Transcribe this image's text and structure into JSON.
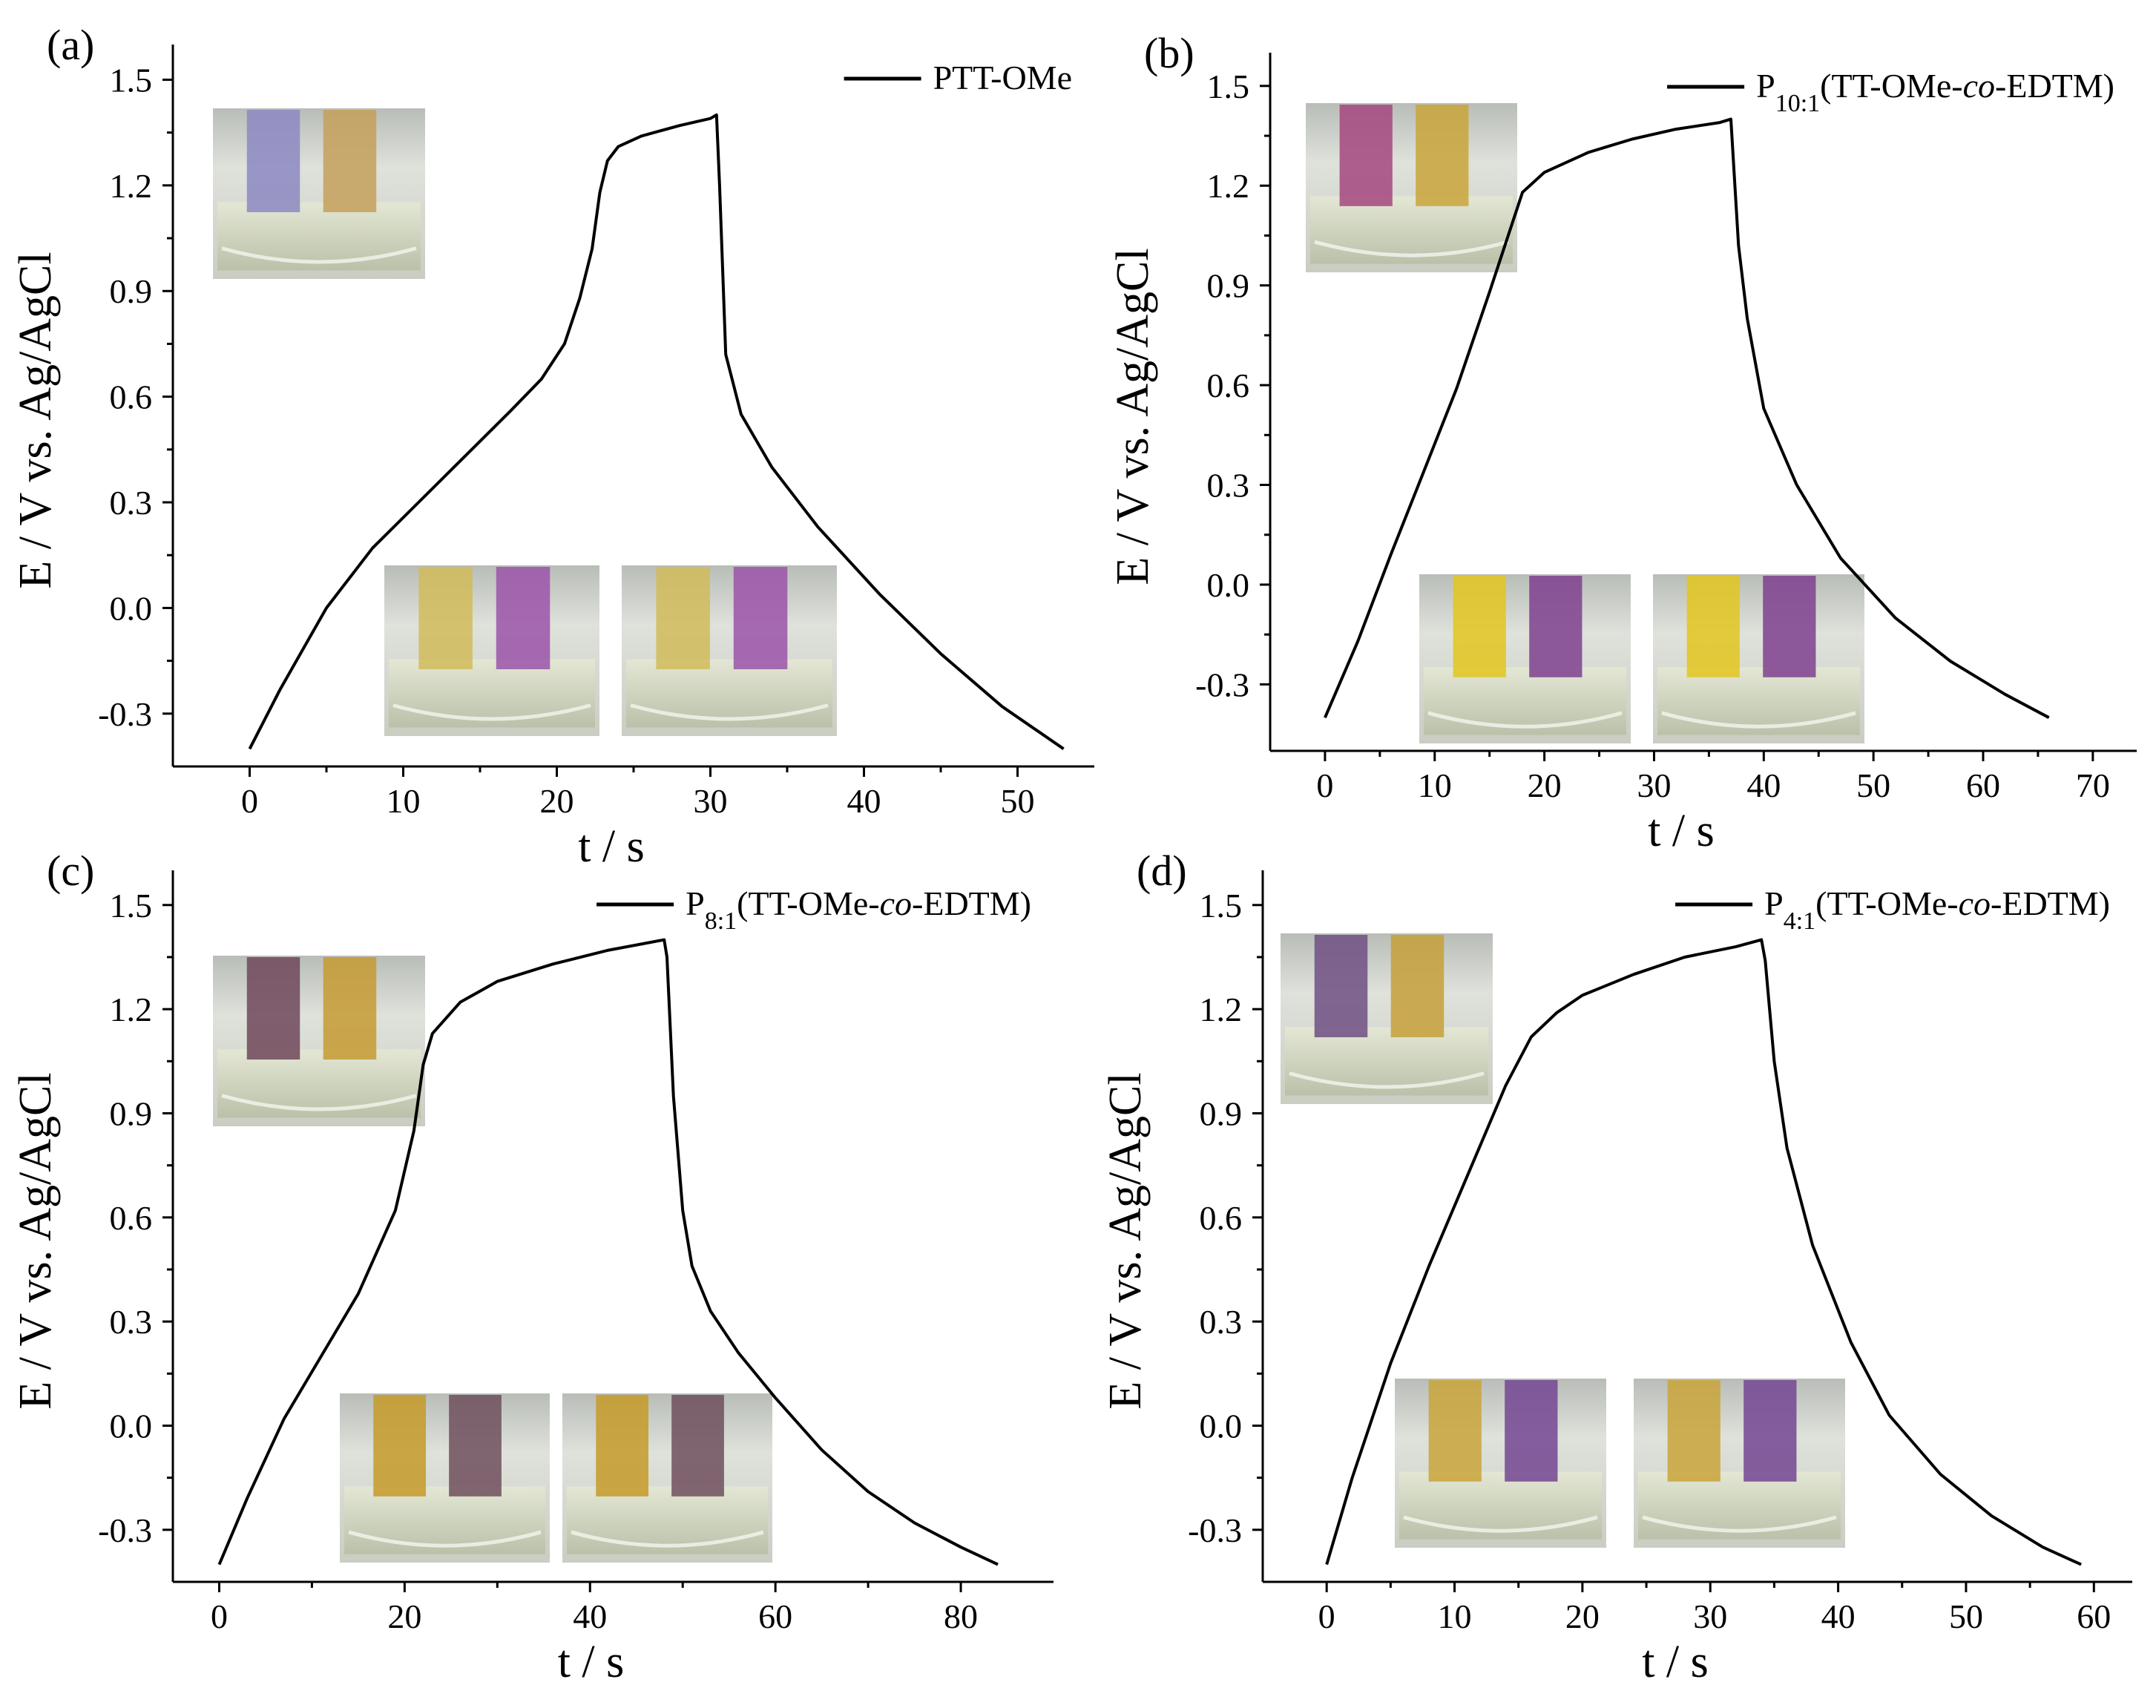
{
  "figure": {
    "xlabel": "t / s",
    "ylabel": "E / V vs. Ag/AgCl"
  },
  "chart_data": [
    {
      "panel": "(a)",
      "type": "line",
      "title": "",
      "xlabel": "t / s",
      "ylabel": "E / V vs. Ag/AgCl",
      "xlim": [
        -5,
        55
      ],
      "ylim": [
        -0.45,
        1.6
      ],
      "xticks": [
        0,
        10,
        20,
        30,
        40,
        50
      ],
      "yticks": [
        -0.3,
        0.0,
        0.3,
        0.6,
        0.9,
        1.2,
        1.5
      ],
      "xtick_labels": [
        "0",
        "10",
        "20",
        "30",
        "40",
        "50"
      ],
      "ytick_labels": [
        "-0.3",
        "0.0",
        "0.3",
        "0.6",
        "0.9",
        "1.2",
        "1.5"
      ],
      "legend_position": "top-right",
      "series": [
        {
          "name": "PTT-OMe",
          "name_parts": [
            {
              "t": "PTT-OMe",
              "s": "n"
            }
          ],
          "x": [
            0,
            2,
            5,
            8,
            11,
            14,
            17,
            19,
            20.5,
            21.5,
            22.3,
            22.8,
            23.3,
            24,
            25.5,
            28,
            30,
            30.4,
            30.6,
            31,
            32,
            34,
            37,
            41,
            45,
            49,
            53
          ],
          "y": [
            -0.4,
            -0.23,
            0.0,
            0.17,
            0.3,
            0.43,
            0.56,
            0.65,
            0.75,
            0.88,
            1.02,
            1.18,
            1.27,
            1.31,
            1.34,
            1.37,
            1.39,
            1.4,
            1.2,
            0.72,
            0.55,
            0.4,
            0.23,
            0.04,
            -0.13,
            -0.28,
            -0.4
          ]
        }
      ]
    },
    {
      "panel": "(b)",
      "type": "line",
      "title": "",
      "xlabel": "t / s",
      "ylabel": "E / V vs. Ag/AgCl",
      "xlim": [
        -5,
        74
      ],
      "ylim": [
        -0.5,
        1.6
      ],
      "xticks": [
        0,
        10,
        20,
        30,
        40,
        50,
        60,
        70
      ],
      "yticks": [
        -0.3,
        0.0,
        0.3,
        0.6,
        0.9,
        1.2,
        1.5
      ],
      "xtick_labels": [
        "0",
        "10",
        "20",
        "30",
        "40",
        "50",
        "60",
        "70"
      ],
      "ytick_labels": [
        "-0.3",
        "0.0",
        "0.3",
        "0.6",
        "0.9",
        "1.2",
        "1.5"
      ],
      "legend_position": "top-right",
      "series": [
        {
          "name": "P10:1(TT-OMe-co-EDTM)",
          "name_parts": [
            {
              "t": "P",
              "s": "n"
            },
            {
              "t": "10:1",
              "s": "sub"
            },
            {
              "t": "(TT-OMe-",
              "s": "n"
            },
            {
              "t": "co",
              "s": "i"
            },
            {
              "t": "-EDTM)",
              "s": "n"
            }
          ],
          "x": [
            0,
            3,
            6,
            9,
            12,
            15,
            17,
            18,
            20,
            24,
            28,
            32,
            36,
            37,
            37.7,
            38.5,
            40,
            43,
            47,
            52,
            57,
            62,
            66
          ],
          "y": [
            -0.4,
            -0.17,
            0.09,
            0.34,
            0.59,
            0.88,
            1.08,
            1.18,
            1.24,
            1.3,
            1.34,
            1.37,
            1.39,
            1.4,
            1.02,
            0.8,
            0.53,
            0.3,
            0.08,
            -0.1,
            -0.23,
            -0.33,
            -0.4
          ]
        }
      ]
    },
    {
      "panel": "(c)",
      "type": "line",
      "title": "",
      "xlabel": "t / s",
      "ylabel": "E / V vs. Ag/AgCl",
      "xlim": [
        -5,
        90
      ],
      "ylim": [
        -0.45,
        1.6
      ],
      "xticks": [
        0,
        20,
        40,
        60,
        80
      ],
      "yticks": [
        -0.3,
        0.0,
        0.3,
        0.6,
        0.9,
        1.2,
        1.5
      ],
      "xtick_labels": [
        "0",
        "20",
        "40",
        "60",
        "80"
      ],
      "ytick_labels": [
        "-0.3",
        "0.0",
        "0.3",
        "0.6",
        "0.9",
        "1.2",
        "1.5"
      ],
      "legend_position": "top-right",
      "series": [
        {
          "name": "P8:1(TT-OMe-co-EDTM)",
          "name_parts": [
            {
              "t": "P",
              "s": "n"
            },
            {
              "t": "8:1",
              "s": "sub"
            },
            {
              "t": "(TT-OMe-",
              "s": "n"
            },
            {
              "t": "co",
              "s": "i"
            },
            {
              "t": "-EDTM)",
              "s": "n"
            }
          ],
          "x": [
            0,
            3,
            7,
            11,
            15,
            19,
            21,
            22,
            23,
            26,
            30,
            36,
            42,
            48,
            48.3,
            49,
            50,
            51,
            53,
            56,
            60,
            65,
            70,
            75,
            80,
            84
          ],
          "y": [
            -0.4,
            -0.21,
            0.02,
            0.2,
            0.38,
            0.62,
            0.85,
            1.04,
            1.13,
            1.22,
            1.28,
            1.33,
            1.37,
            1.4,
            1.35,
            0.95,
            0.62,
            0.46,
            0.33,
            0.21,
            0.08,
            -0.07,
            -0.19,
            -0.28,
            -0.35,
            -0.4
          ]
        }
      ]
    },
    {
      "panel": "(d)",
      "type": "line",
      "title": "",
      "xlabel": "t / s",
      "ylabel": "E / V vs. Ag/AgCl",
      "xlim": [
        -5,
        63
      ],
      "ylim": [
        -0.45,
        1.6
      ],
      "xticks": [
        0,
        10,
        20,
        30,
        40,
        50,
        60
      ],
      "yticks": [
        -0.3,
        0.0,
        0.3,
        0.6,
        0.9,
        1.2,
        1.5
      ],
      "xtick_labels": [
        "0",
        "10",
        "20",
        "30",
        "40",
        "50",
        "60"
      ],
      "ytick_labels": [
        "-0.3",
        "0.0",
        "0.3",
        "0.6",
        "0.9",
        "1.2",
        "1.5"
      ],
      "legend_position": "top-right",
      "series": [
        {
          "name": "P4:1(TT-OMe-co-EDTM)",
          "name_parts": [
            {
              "t": "P",
              "s": "n"
            },
            {
              "t": "4:1",
              "s": "sub"
            },
            {
              "t": "(TT-OMe-",
              "s": "n"
            },
            {
              "t": "co",
              "s": "i"
            },
            {
              "t": "-EDTM)",
              "s": "n"
            }
          ],
          "x": [
            0,
            2,
            5,
            8,
            11,
            14,
            16,
            18,
            20,
            24,
            28,
            32,
            34,
            34.3,
            35,
            36,
            38,
            41,
            44,
            48,
            52,
            56,
            59
          ],
          "y": [
            -0.4,
            -0.15,
            0.18,
            0.46,
            0.72,
            0.98,
            1.12,
            1.19,
            1.24,
            1.3,
            1.35,
            1.38,
            1.4,
            1.34,
            1.05,
            0.8,
            0.52,
            0.24,
            0.03,
            -0.14,
            -0.26,
            -0.35,
            -0.4
          ]
        }
      ]
    }
  ]
}
